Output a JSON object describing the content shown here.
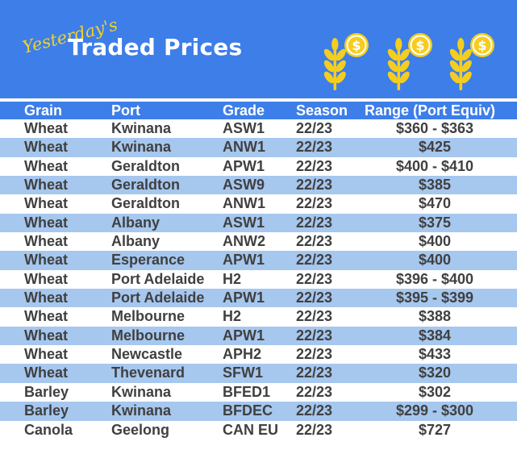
{
  "banner": {
    "script_text": "Yesterday's",
    "title": "Traded Prices",
    "colors": {
      "background": "#3d7ee8",
      "script_text": "#f2d22a",
      "icon": "#f5cd1e"
    },
    "icons": [
      "wheat-coin-icon",
      "wheat-coin-icon",
      "wheat-coin-icon"
    ]
  },
  "table": {
    "headers": {
      "grain": "Grain",
      "port": "Port",
      "grade": "Grade",
      "season": "Season",
      "range": "Range (Port Equiv)"
    },
    "rows": [
      {
        "grain": "Wheat",
        "port": "Kwinana",
        "grade": "ASW1",
        "season": "22/23",
        "range": "$360 - $363"
      },
      {
        "grain": "Wheat",
        "port": "Kwinana",
        "grade": "ANW1",
        "season": "22/23",
        "range": "$425"
      },
      {
        "grain": "Wheat",
        "port": "Geraldton",
        "grade": "APW1",
        "season": "22/23",
        "range": "$400 - $410"
      },
      {
        "grain": "Wheat",
        "port": "Geraldton",
        "grade": "ASW9",
        "season": "22/23",
        "range": "$385"
      },
      {
        "grain": "Wheat",
        "port": "Geraldton",
        "grade": "ANW1",
        "season": "22/23",
        "range": "$470"
      },
      {
        "grain": "Wheat",
        "port": "Albany",
        "grade": "ASW1",
        "season": "22/23",
        "range": "$375"
      },
      {
        "grain": "Wheat",
        "port": "Albany",
        "grade": "ANW2",
        "season": "22/23",
        "range": "$400"
      },
      {
        "grain": "Wheat",
        "port": "Esperance",
        "grade": "APW1",
        "season": "22/23",
        "range": "$400"
      },
      {
        "grain": "Wheat",
        "port": "Port Adelaide",
        "grade": "H2",
        "season": "22/23",
        "range": "$396 - $400"
      },
      {
        "grain": "Wheat",
        "port": "Port Adelaide",
        "grade": "APW1",
        "season": "22/23",
        "range": "$395 - $399"
      },
      {
        "grain": "Wheat",
        "port": "Melbourne",
        "grade": "H2",
        "season": "22/23",
        "range": "$388"
      },
      {
        "grain": "Wheat",
        "port": "Melbourne",
        "grade": "APW1",
        "season": "22/23",
        "range": "$384"
      },
      {
        "grain": "Wheat",
        "port": "Newcastle",
        "grade": "APH2",
        "season": "22/23",
        "range": "$433"
      },
      {
        "grain": "Wheat",
        "port": "Thevenard",
        "grade": "SFW1",
        "season": "22/23",
        "range": "$320"
      },
      {
        "grain": "Barley",
        "port": "Kwinana",
        "grade": "BFED1",
        "season": "22/23",
        "range": "$302"
      },
      {
        "grain": "Barley",
        "port": "Kwinana",
        "grade": "BFDEC",
        "season": "22/23",
        "range": "$299 - $300"
      },
      {
        "grain": "Canola",
        "port": "Geelong",
        "grade": "CAN EU",
        "season": "22/23",
        "range": "$727"
      }
    ],
    "colors": {
      "header": "#3d7ee8",
      "row_white": "#ffffff",
      "row_blue": "#a6c7ee",
      "text": "#404040"
    }
  }
}
